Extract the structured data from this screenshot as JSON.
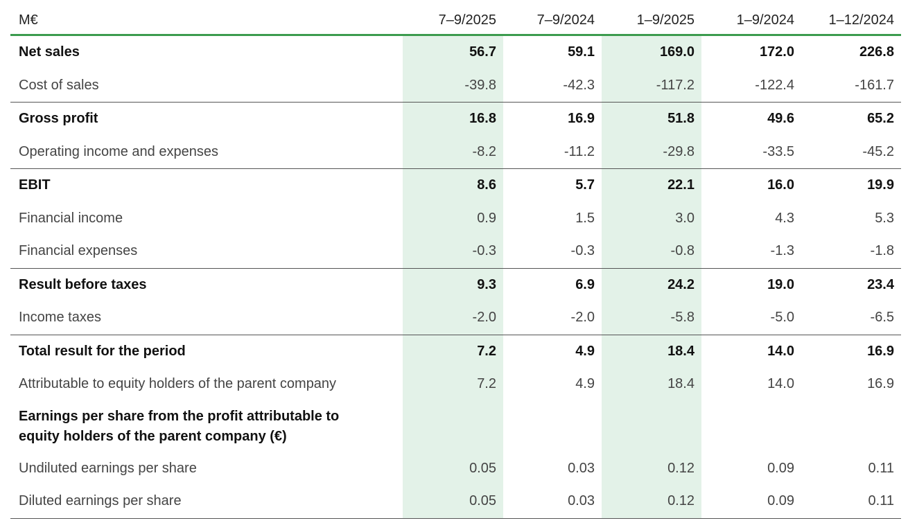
{
  "header": {
    "unit": "M€",
    "columns": [
      "7–9/2025",
      "7–9/2024",
      "1–9/2025",
      "1–9/2024",
      "1–12/2024"
    ]
  },
  "rows": [
    {
      "label": "Net sales",
      "values": [
        "56.7",
        "59.1",
        "169.0",
        "172.0",
        "226.8"
      ]
    },
    {
      "label": "Cost of sales",
      "values": [
        "-39.8",
        "-42.3",
        "-117.2",
        "-122.4",
        "-161.7"
      ]
    },
    {
      "label": "Gross profit",
      "values": [
        "16.8",
        "16.9",
        "51.8",
        "49.6",
        "65.2"
      ]
    },
    {
      "label": "Operating income and expenses",
      "values": [
        "-8.2",
        "-11.2",
        "-29.8",
        "-33.5",
        "-45.2"
      ]
    },
    {
      "label": "EBIT",
      "values": [
        "8.6",
        "5.7",
        "22.1",
        "16.0",
        "19.9"
      ]
    },
    {
      "label": "Financial income",
      "values": [
        "0.9",
        "1.5",
        "3.0",
        "4.3",
        "5.3"
      ]
    },
    {
      "label": "Financial expenses",
      "values": [
        "-0.3",
        "-0.3",
        "-0.8",
        "-1.3",
        "-1.8"
      ]
    },
    {
      "label": "Result before taxes",
      "values": [
        "9.3",
        "6.9",
        "24.2",
        "19.0",
        "23.4"
      ]
    },
    {
      "label": "Income taxes",
      "values": [
        "-2.0",
        "-2.0",
        "-5.8",
        "-5.0",
        "-6.5"
      ]
    },
    {
      "label": "Total result for the period",
      "values": [
        "7.2",
        "4.9",
        "18.4",
        "14.0",
        "16.9"
      ]
    },
    {
      "label": "Attributable to equity holders of the parent company",
      "values": [
        "7.2",
        "4.9",
        "18.4",
        "14.0",
        "16.9"
      ]
    },
    {
      "label": "Earnings per share from the profit attributable to equity holders of the parent company (€)"
    },
    {
      "label": "Undiluted earnings per share",
      "values": [
        "0.05",
        "0.03",
        "0.12",
        "0.09",
        "0.11"
      ]
    },
    {
      "label": "Diluted earnings per share",
      "values": [
        "0.05",
        "0.03",
        "0.12",
        "0.09",
        "0.11"
      ]
    }
  ]
}
